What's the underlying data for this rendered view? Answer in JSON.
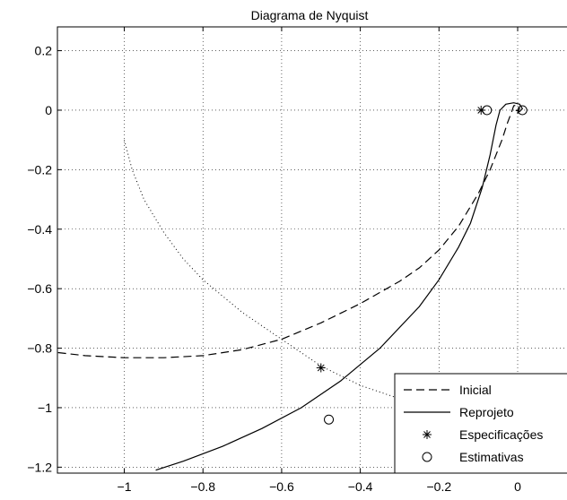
{
  "chart_data": {
    "type": "line",
    "title": "Diagrama de Nyquist",
    "xlabel": "",
    "ylabel": "",
    "xlim": [
      -1.17,
      0.13
    ],
    "ylim": [
      -1.22,
      0.28
    ],
    "x_ticks": [
      -1,
      -0.8,
      -0.6,
      -0.4,
      -0.2,
      0
    ],
    "x_tick_labels": [
      "−1",
      "−0.8",
      "−0.6",
      "−0.4",
      "−0.2",
      "0"
    ],
    "y_ticks": [
      0.2,
      0,
      -0.2,
      -0.4,
      -0.6,
      -0.8,
      -1,
      -1.2
    ],
    "y_tick_labels": [
      "0.2",
      "0",
      "−0.2",
      "−0.4",
      "−0.6",
      "−0.8",
      "−1",
      "−1.2"
    ],
    "grid": true,
    "legend_position": "bottom-right",
    "series": [
      {
        "name": "Inicial",
        "style": "dashed",
        "points": [
          [
            -1.2,
            -0.81
          ],
          [
            -1.1,
            -0.825
          ],
          [
            -1.0,
            -0.832
          ],
          [
            -0.9,
            -0.832
          ],
          [
            -0.8,
            -0.825
          ],
          [
            -0.7,
            -0.805
          ],
          [
            -0.6,
            -0.77
          ],
          [
            -0.5,
            -0.715
          ],
          [
            -0.4,
            -0.65
          ],
          [
            -0.3,
            -0.575
          ],
          [
            -0.25,
            -0.53
          ],
          [
            -0.2,
            -0.47
          ],
          [
            -0.15,
            -0.39
          ],
          [
            -0.1,
            -0.28
          ],
          [
            -0.07,
            -0.2
          ],
          [
            -0.04,
            -0.1
          ],
          [
            -0.025,
            -0.04
          ],
          [
            -0.015,
            -0.005
          ],
          [
            -0.01,
            0.015
          ],
          [
            0.0,
            0.018
          ],
          [
            0.005,
            0.005
          ],
          [
            0.0,
            -0.01
          ],
          [
            -0.005,
            0.0
          ]
        ]
      },
      {
        "name": "Reprojeto",
        "style": "solid",
        "points": [
          [
            -0.92,
            -1.21
          ],
          [
            -0.85,
            -1.18
          ],
          [
            -0.75,
            -1.13
          ],
          [
            -0.65,
            -1.07
          ],
          [
            -0.55,
            -1.0
          ],
          [
            -0.45,
            -0.91
          ],
          [
            -0.35,
            -0.8
          ],
          [
            -0.25,
            -0.66
          ],
          [
            -0.2,
            -0.57
          ],
          [
            -0.15,
            -0.46
          ],
          [
            -0.12,
            -0.38
          ],
          [
            -0.09,
            -0.26
          ],
          [
            -0.07,
            -0.15
          ],
          [
            -0.055,
            -0.05
          ],
          [
            -0.045,
            0.0
          ],
          [
            -0.03,
            0.02
          ],
          [
            -0.01,
            0.025
          ],
          [
            0.005,
            0.02
          ],
          [
            0.012,
            0.005
          ],
          [
            0.005,
            -0.005
          ],
          [
            -0.005,
            0.0
          ]
        ]
      },
      {
        "name": "",
        "style": "dotted",
        "points": [
          [
            -1.0,
            -0.1
          ],
          [
            -0.98,
            -0.2
          ],
          [
            -0.95,
            -0.3
          ],
          [
            -0.9,
            -0.41
          ],
          [
            -0.85,
            -0.5
          ],
          [
            -0.8,
            -0.57
          ],
          [
            -0.7,
            -0.68
          ],
          [
            -0.6,
            -0.77
          ],
          [
            -0.5,
            -0.86
          ],
          [
            -0.4,
            -0.925
          ],
          [
            -0.3,
            -0.97
          ],
          [
            -0.2,
            -1.0
          ],
          [
            -0.1,
            -1.02
          ],
          [
            0.0,
            -1.03
          ],
          [
            0.1,
            -1.035
          ],
          [
            0.15,
            -1.035
          ]
        ]
      }
    ],
    "markers": [
      {
        "name": "Especificações",
        "symbol": "asterisk",
        "points": [
          [
            -0.093,
            0.0
          ],
          [
            -0.5,
            -0.866
          ]
        ]
      },
      {
        "name": "Estimativas",
        "symbol": "circle",
        "points": [
          [
            -0.078,
            0.0
          ],
          [
            0.012,
            0.0
          ],
          [
            -0.48,
            -1.04
          ]
        ]
      }
    ],
    "legend": [
      {
        "label": "Inicial",
        "style": "dashed"
      },
      {
        "label": "Reprojeto",
        "style": "solid"
      },
      {
        "label": "Especificações",
        "style": "asterisk"
      },
      {
        "label": "Estimativas",
        "style": "circle"
      }
    ]
  }
}
